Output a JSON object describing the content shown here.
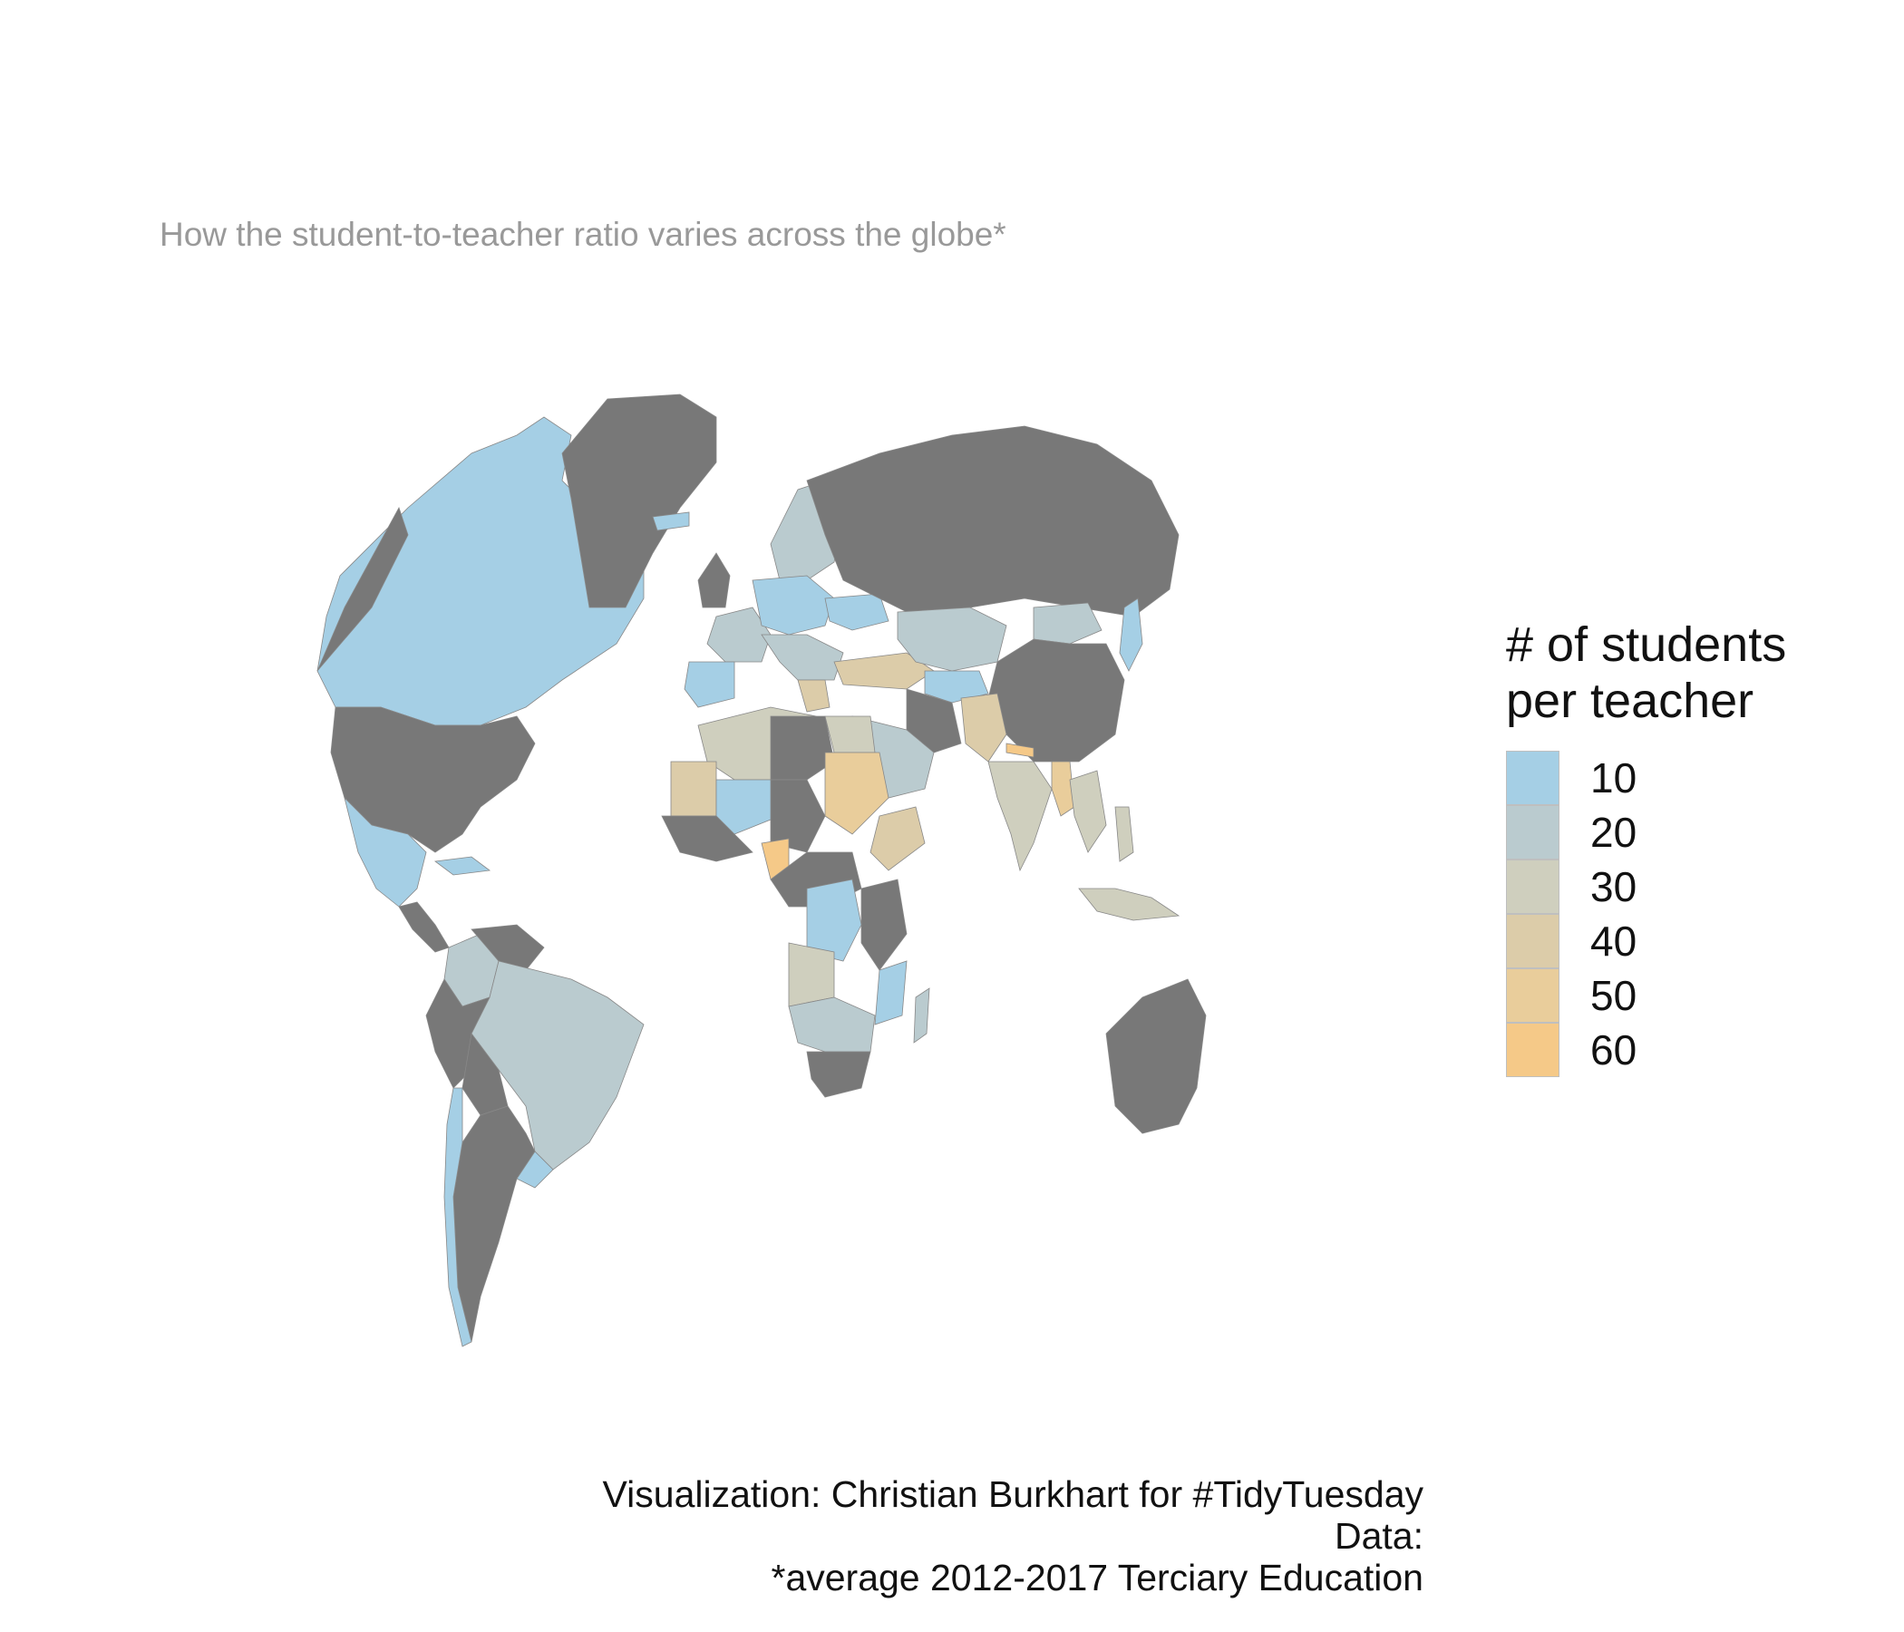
{
  "subtitle": "How the student-to-teacher ratio varies across the globe*",
  "legend": {
    "title_line1": "# of students",
    "title_line2": "per teacher",
    "items": [
      {
        "label": "10",
        "color": "#a5cfe5"
      },
      {
        "label": "20",
        "color": "#bacbcf"
      },
      {
        "label": "30",
        "color": "#cfcfbe"
      },
      {
        "label": "40",
        "color": "#dccca9"
      },
      {
        "label": "50",
        "color": "#e9cd9b"
      },
      {
        "label": "60",
        "color": "#f5c988"
      }
    ],
    "no_data_color": "#787878"
  },
  "caption": {
    "line1": "Visualization: Christian Burkhart for #TidyTuesday",
    "line2": "Data:",
    "line3": "*average 2012-2017 Terciary Education"
  }
}
